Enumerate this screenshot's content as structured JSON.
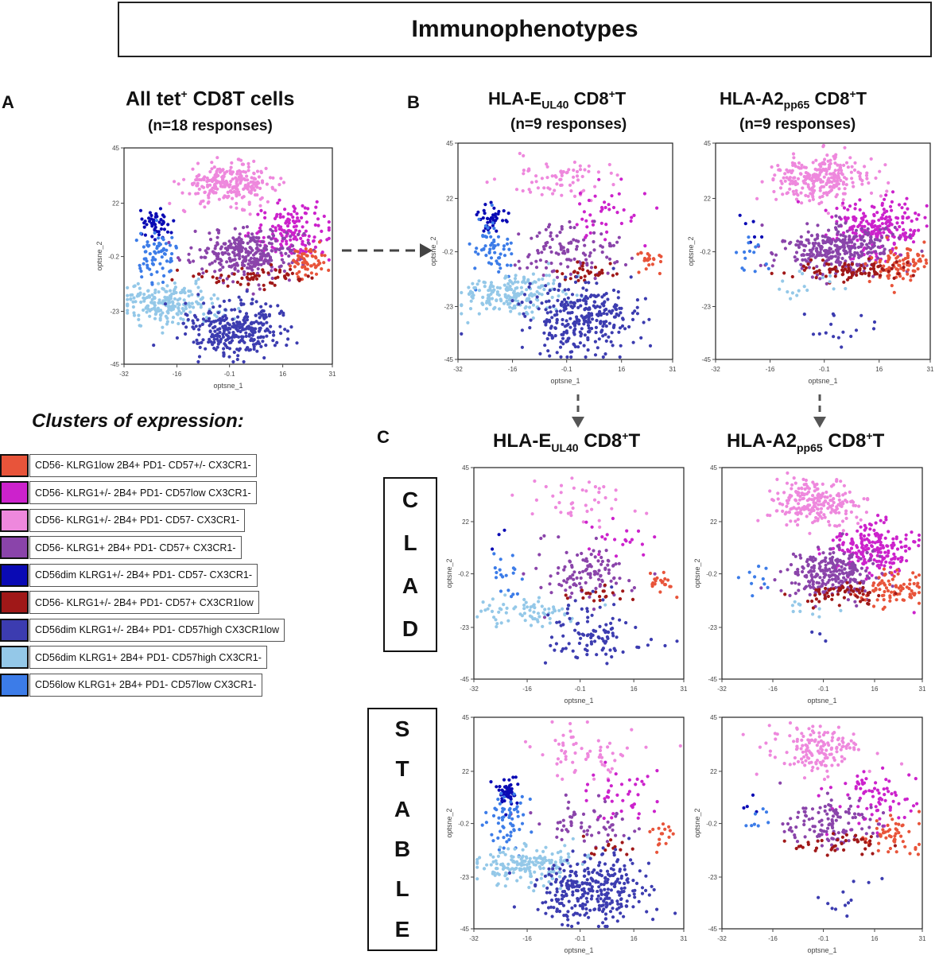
{
  "title": "Immunophenotypes",
  "panel_labels": {
    "a": "A",
    "b": "B",
    "c": "C"
  },
  "panel_a": {
    "title_pre": "All  tet",
    "title_sup": "+",
    "title_post": " CD8T cells",
    "subtitle": "(n=18 responses)"
  },
  "panel_b": {
    "left_title_pre": "HLA-E",
    "left_title_sub": "UL40",
    "left_title_post": " CD8",
    "left_title_sup": "+",
    "left_title_end": "T",
    "left_subtitle": "(n=9 responses)",
    "right_title_pre": "HLA-A2",
    "right_title_sub": "pp65",
    "right_title_post": " CD8",
    "right_title_sup": "+",
    "right_title_end": "T",
    "right_subtitle": "(n=9 responses)"
  },
  "panel_c": {
    "left_title_pre": "HLA-E",
    "left_title_sub": "UL40",
    "left_title_post": " CD8",
    "left_title_sup": "+",
    "left_title_end": "T",
    "right_title_pre": "HLA-A2",
    "right_title_sub": "pp65",
    "right_title_post": " CD8",
    "right_title_sup": "+",
    "right_title_end": "T",
    "row1_label": [
      "C",
      "L",
      "A",
      "D"
    ],
    "row2_label": [
      "S",
      "T",
      "A",
      "B",
      "L",
      "E"
    ]
  },
  "legend": {
    "title": "Clusters of expression:",
    "items": [
      {
        "label": "CD56- KLRG1low 2B4+ PD1- CD57+/- CX3CR1-",
        "color": "#e8543a"
      },
      {
        "label": "CD56- KLRG1+/- 2B4+ PD1- CD57low CX3CR1-",
        "color": "#cc22cc"
      },
      {
        "label": "CD56- KLRG1+/- 2B4+ PD1- CD57- CX3CR1-",
        "color": "#ee88dd"
      },
      {
        "label": "CD56- KLRG1+ 2B4+ PD1- CD57+ CX3CR1-",
        "color": "#8a44aa"
      },
      {
        "label": "CD56dim KLRG1+/- 2B4+ PD1- CD57- CX3CR1-",
        "color": "#0a0ab4"
      },
      {
        "label": "CD56- KLRG1+/- 2B4+ PD1- CD57+ CX3CR1low",
        "color": "#a01818"
      },
      {
        "label": "CD56dim KLRG1+/- 2B4+ PD1- CD57high CX3CR1low",
        "color": "#3c3cb0"
      },
      {
        "label": "CD56dim KLRG1+ 2B4+ PD1- CD57high CX3CR1-",
        "color": "#94c8e8"
      },
      {
        "label": "CD56low KLRG1+ 2B4+ PD1- CD57low CX3CR1-",
        "color": "#3c7ce8"
      }
    ]
  },
  "chart_data": [
    {
      "type": "scatter",
      "id": "all",
      "title": "All tet+ CD8T cells",
      "xlabel": "optsne_1",
      "ylabel": "optsne_2",
      "xticks": [
        "-32",
        "-16",
        "-0.1",
        "16",
        "31"
      ],
      "yticks": [
        "45",
        "22",
        "-0.2",
        "-23",
        "-45"
      ],
      "xlim": [
        -32,
        31
      ],
      "ylim": [
        -45,
        45
      ],
      "clusters": [
        {
          "name": "pink",
          "cx": 0,
          "cy": 30,
          "sx": 7,
          "sy": 4,
          "n": 260
        },
        {
          "name": "magenta",
          "cx": 19,
          "cy": 10,
          "sx": 6,
          "sy": 6,
          "n": 150
        },
        {
          "name": "purple",
          "cx": 5,
          "cy": 1,
          "sx": 8,
          "sy": 5,
          "n": 300
        },
        {
          "name": "orange",
          "cx": 24,
          "cy": -2,
          "sx": 3,
          "sy": 4,
          "n": 60
        },
        {
          "name": "darkred",
          "cx": 8,
          "cy": -9,
          "sx": 8,
          "sy": 2,
          "n": 60
        },
        {
          "name": "navy",
          "cx": -22,
          "cy": 14,
          "sx": 2,
          "sy": 3,
          "n": 50
        },
        {
          "name": "blue",
          "cx": -22,
          "cy": 0,
          "sx": 3,
          "sy": 6,
          "n": 70
        },
        {
          "name": "lightblue",
          "cx": -18,
          "cy": -20,
          "sx": 8,
          "sy": 4,
          "n": 220
        },
        {
          "name": "indigo",
          "cx": 2,
          "cy": -30,
          "sx": 8,
          "sy": 6,
          "n": 300
        }
      ]
    },
    {
      "type": "scatter",
      "id": "e_all",
      "title": "HLA-E UL40 CD8+T (n=9 responses)",
      "xlabel": "optsne_1",
      "ylabel": "optsne_2",
      "xticks": [
        "-32",
        "-16",
        "-0.1",
        "16",
        "31"
      ],
      "yticks": [
        "45",
        "22",
        "-0.2",
        "-23",
        "-45"
      ],
      "xlim": [
        -32,
        31
      ],
      "ylim": [
        -45,
        45
      ],
      "clusters": [
        {
          "name": "pink",
          "cx": -2,
          "cy": 30,
          "sx": 9,
          "sy": 5,
          "n": 70
        },
        {
          "name": "magenta",
          "cx": 12,
          "cy": 14,
          "sx": 6,
          "sy": 6,
          "n": 40
        },
        {
          "name": "purple",
          "cx": 2,
          "cy": 0,
          "sx": 7,
          "sy": 6,
          "n": 110
        },
        {
          "name": "orange",
          "cx": 24,
          "cy": -3,
          "sx": 2,
          "sy": 3,
          "n": 22
        },
        {
          "name": "darkred",
          "cx": 6,
          "cy": -9,
          "sx": 4,
          "sy": 2,
          "n": 30
        },
        {
          "name": "navy",
          "cx": -22,
          "cy": 14,
          "sx": 2,
          "sy": 3,
          "n": 40
        },
        {
          "name": "blue",
          "cx": -22,
          "cy": 0,
          "sx": 3,
          "sy": 6,
          "n": 60
        },
        {
          "name": "lightblue",
          "cx": -16,
          "cy": -18,
          "sx": 8,
          "sy": 4,
          "n": 200
        },
        {
          "name": "indigo",
          "cx": 4,
          "cy": -28,
          "sx": 8,
          "sy": 7,
          "n": 300
        }
      ]
    },
    {
      "type": "scatter",
      "id": "a2_all",
      "title": "HLA-A2 pp65 CD8+T (n=9 responses)",
      "xlabel": "optsne_1",
      "ylabel": "optsne_2",
      "xticks": [
        "-32",
        "-16",
        "-0.1",
        "16",
        "31"
      ],
      "yticks": [
        "45",
        "22",
        "-0.2",
        "-23",
        "-45"
      ],
      "xlim": [
        -32,
        31
      ],
      "ylim": [
        -45,
        45
      ],
      "clusters": [
        {
          "name": "pink",
          "cx": -2,
          "cy": 30,
          "sx": 7,
          "sy": 5,
          "n": 260
        },
        {
          "name": "magenta",
          "cx": 15,
          "cy": 10,
          "sx": 7,
          "sy": 6,
          "n": 220
        },
        {
          "name": "purple",
          "cx": 4,
          "cy": 1,
          "sx": 9,
          "sy": 5,
          "n": 320
        },
        {
          "name": "orange",
          "cx": 22,
          "cy": -6,
          "sx": 5,
          "sy": 4,
          "n": 90
        },
        {
          "name": "darkred",
          "cx": 8,
          "cy": -8,
          "sx": 9,
          "sy": 2,
          "n": 90
        },
        {
          "name": "navy",
          "cx": -20,
          "cy": 10,
          "sx": 3,
          "sy": 3,
          "n": 6
        },
        {
          "name": "blue",
          "cx": -22,
          "cy": -2,
          "sx": 3,
          "sy": 4,
          "n": 14
        },
        {
          "name": "lightblue",
          "cx": -6,
          "cy": -15,
          "sx": 7,
          "sy": 3,
          "n": 16
        },
        {
          "name": "indigo",
          "cx": 4,
          "cy": -32,
          "sx": 6,
          "sy": 5,
          "n": 16
        }
      ]
    },
    {
      "type": "scatter",
      "id": "e_clad",
      "title": "HLA-E UL40 CD8+T CLAD",
      "xlabel": "optsne_1",
      "ylabel": "optsne_2",
      "xticks": [
        "-32",
        "-16",
        "-0.1",
        "16",
        "31"
      ],
      "yticks": [
        "45",
        "22",
        "-0.2",
        "-23",
        "-45"
      ],
      "xlim": [
        -32,
        31
      ],
      "ylim": [
        -45,
        45
      ],
      "clusters": [
        {
          "name": "pink",
          "cx": 0,
          "cy": 30,
          "sx": 9,
          "sy": 5,
          "n": 40
        },
        {
          "name": "magenta",
          "cx": 10,
          "cy": 14,
          "sx": 6,
          "sy": 5,
          "n": 20
        },
        {
          "name": "purple",
          "cx": 2,
          "cy": 0,
          "sx": 7,
          "sy": 6,
          "n": 110
        },
        {
          "name": "orange",
          "cx": 24,
          "cy": -3,
          "sx": 2,
          "sy": 3,
          "n": 20
        },
        {
          "name": "darkred",
          "cx": 6,
          "cy": -9,
          "sx": 4,
          "sy": 2,
          "n": 20
        },
        {
          "name": "navy",
          "cx": -22,
          "cy": 14,
          "sx": 2,
          "sy": 3,
          "n": 3
        },
        {
          "name": "blue",
          "cx": -22,
          "cy": 0,
          "sx": 3,
          "sy": 5,
          "n": 20
        },
        {
          "name": "lightblue",
          "cx": -16,
          "cy": -16,
          "sx": 8,
          "sy": 3,
          "n": 70
        },
        {
          "name": "indigo",
          "cx": 4,
          "cy": -26,
          "sx": 7,
          "sy": 7,
          "n": 100
        }
      ]
    },
    {
      "type": "scatter",
      "id": "a2_clad",
      "title": "HLA-A2 pp65 CD8+T CLAD",
      "xlabel": "optsne_1",
      "ylabel": "optsne_2",
      "xticks": [
        "-32",
        "-16",
        "-0.1",
        "16",
        "31"
      ],
      "yticks": [
        "45",
        "22",
        "-0.2",
        "-23",
        "-45"
      ],
      "xlim": [
        -32,
        31
      ],
      "ylim": [
        -45,
        45
      ],
      "clusters": [
        {
          "name": "pink",
          "cx": -2,
          "cy": 30,
          "sx": 7,
          "sy": 5,
          "n": 220
        },
        {
          "name": "magenta",
          "cx": 15,
          "cy": 10,
          "sx": 7,
          "sy": 6,
          "n": 200
        },
        {
          "name": "purple",
          "cx": 2,
          "cy": 0,
          "sx": 8,
          "sy": 5,
          "n": 260
        },
        {
          "name": "orange",
          "cx": 22,
          "cy": -6,
          "sx": 5,
          "sy": 4,
          "n": 80
        },
        {
          "name": "darkred",
          "cx": 6,
          "cy": -9,
          "sx": 7,
          "sy": 2,
          "n": 60
        },
        {
          "name": "blue",
          "cx": -22,
          "cy": -2,
          "sx": 3,
          "sy": 4,
          "n": 10
        },
        {
          "name": "lightblue",
          "cx": -4,
          "cy": -15,
          "sx": 7,
          "sy": 3,
          "n": 10
        },
        {
          "name": "indigo",
          "cx": 2,
          "cy": -26,
          "sx": 4,
          "sy": 3,
          "n": 3
        }
      ]
    },
    {
      "type": "scatter",
      "id": "e_stable",
      "title": "HLA-E UL40 CD8+T STABLE",
      "xlabel": "optsne_1",
      "ylabel": "optsne_2",
      "xticks": [
        "-32",
        "-16",
        "-0.1",
        "16",
        "31"
      ],
      "yticks": [
        "45",
        "22",
        "-0.2",
        "-23",
        "-45"
      ],
      "xlim": [
        -32,
        31
      ],
      "ylim": [
        -45,
        45
      ],
      "clusters": [
        {
          "name": "pink",
          "cx": 0,
          "cy": 30,
          "sx": 9,
          "sy": 5,
          "n": 60
        },
        {
          "name": "magenta",
          "cx": 12,
          "cy": 12,
          "sx": 6,
          "sy": 6,
          "n": 40
        },
        {
          "name": "purple",
          "cx": 2,
          "cy": 0,
          "sx": 7,
          "sy": 6,
          "n": 60
        },
        {
          "name": "orange",
          "cx": 24,
          "cy": -4,
          "sx": 2,
          "sy": 3,
          "n": 16
        },
        {
          "name": "darkred",
          "cx": 6,
          "cy": -10,
          "sx": 4,
          "sy": 2,
          "n": 14
        },
        {
          "name": "navy",
          "cx": -22,
          "cy": 14,
          "sx": 2,
          "sy": 3,
          "n": 50
        },
        {
          "name": "blue",
          "cx": -22,
          "cy": 0,
          "sx": 3,
          "sy": 6,
          "n": 60
        },
        {
          "name": "lightblue",
          "cx": -16,
          "cy": -18,
          "sx": 8,
          "sy": 4,
          "n": 180
        },
        {
          "name": "indigo",
          "cx": 4,
          "cy": -28,
          "sx": 8,
          "sy": 7,
          "n": 320
        }
      ]
    },
    {
      "type": "scatter",
      "id": "a2_stable",
      "title": "HLA-A2 pp65 CD8+T STABLE",
      "xlabel": "optsne_1",
      "ylabel": "optsne_2",
      "xticks": [
        "-32",
        "-16",
        "-0.1",
        "16",
        "31"
      ],
      "yticks": [
        "45",
        "22",
        "-0.2",
        "-23",
        "-45"
      ],
      "xlim": [
        -32,
        31
      ],
      "ylim": [
        -45,
        45
      ],
      "clusters": [
        {
          "name": "pink",
          "cx": -2,
          "cy": 32,
          "sx": 7,
          "sy": 5,
          "n": 150
        },
        {
          "name": "magenta",
          "cx": 15,
          "cy": 10,
          "sx": 7,
          "sy": 6,
          "n": 80
        },
        {
          "name": "purple",
          "cx": 2,
          "cy": 0,
          "sx": 8,
          "sy": 5,
          "n": 120
        },
        {
          "name": "orange",
          "cx": 22,
          "cy": -6,
          "sx": 5,
          "sy": 4,
          "n": 50
        },
        {
          "name": "darkred",
          "cx": 6,
          "cy": -9,
          "sx": 7,
          "sy": 2,
          "n": 40
        },
        {
          "name": "navy",
          "cx": -24,
          "cy": 8,
          "sx": 2,
          "sy": 2,
          "n": 4
        },
        {
          "name": "blue",
          "cx": -22,
          "cy": -2,
          "sx": 3,
          "sy": 4,
          "n": 8
        },
        {
          "name": "indigo",
          "cx": 4,
          "cy": -32,
          "sx": 5,
          "sy": 5,
          "n": 12
        }
      ]
    }
  ]
}
